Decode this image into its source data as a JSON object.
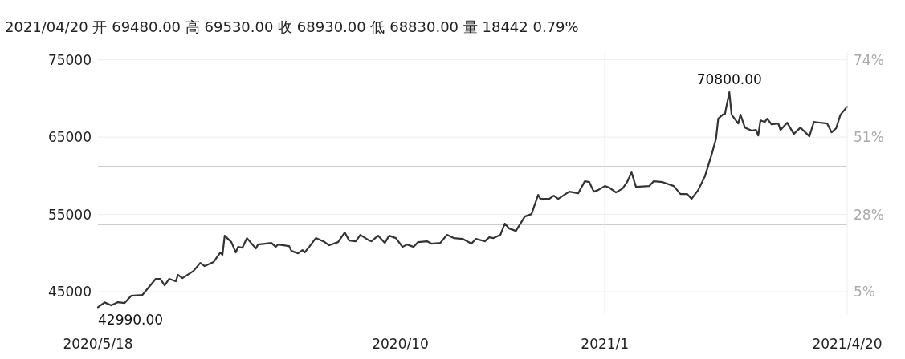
{
  "chart_data": {
    "type": "line",
    "title": "2021/04/20 开 69480.00 高 69530.00 收 68930.00 低 68830.00 量 18442 0.79%",
    "color": "#333333",
    "grid": "y",
    "marker": "none",
    "line_style": "solid",
    "x": [
      "2020-05-18",
      "2020-05-21",
      "2020-05-24",
      "2020-05-27",
      "2020-05-30",
      "2020-06-02",
      "2020-06-07",
      "2020-06-10",
      "2020-06-13",
      "2020-06-15",
      "2020-06-17",
      "2020-06-19",
      "2020-06-22",
      "2020-06-23",
      "2020-06-25",
      "2020-06-30",
      "2020-07-03",
      "2020-07-05",
      "2020-07-09",
      "2020-07-12",
      "2020-07-13",
      "2020-07-14",
      "2020-07-17",
      "2020-07-19",
      "2020-07-20",
      "2020-07-22",
      "2020-07-24",
      "2020-07-28",
      "2020-07-29",
      "2020-08-04",
      "2020-08-06",
      "2020-08-07",
      "2020-08-12",
      "2020-08-13",
      "2020-08-16",
      "2020-08-18",
      "2020-08-19",
      "2020-08-21",
      "2020-08-24",
      "2020-08-28",
      "2020-08-30",
      "2020-09-03",
      "2020-09-06",
      "2020-09-08",
      "2020-09-11",
      "2020-09-13",
      "2020-09-17",
      "2020-09-18",
      "2020-09-21",
      "2020-09-24",
      "2020-09-26",
      "2020-09-29",
      "2020-10-02",
      "2020-10-04",
      "2020-10-07",
      "2020-10-09",
      "2020-10-13",
      "2020-10-15",
      "2020-10-19",
      "2020-10-22",
      "2020-10-25",
      "2020-10-29",
      "2020-11-02",
      "2020-11-04",
      "2020-11-08",
      "2020-11-10",
      "2020-11-12",
      "2020-11-15",
      "2020-11-17",
      "2020-11-19",
      "2020-11-22",
      "2020-11-26",
      "2020-11-29",
      "2020-12-02",
      "2020-12-03",
      "2020-12-07",
      "2020-12-09",
      "2020-12-11",
      "2020-12-16",
      "2020-12-20",
      "2020-12-23",
      "2020-12-25",
      "2020-12-27",
      "2020-12-29",
      "2021-01-01",
      "2021-01-03",
      "2021-01-06",
      "2021-01-09",
      "2021-01-11",
      "2021-01-13",
      "2021-01-15",
      "2021-01-21",
      "2021-01-23",
      "2021-01-27",
      "2021-02-01",
      "2021-02-04",
      "2021-02-07",
      "2021-02-09",
      "2021-02-12",
      "2021-02-15",
      "2021-02-18",
      "2021-02-20",
      "2021-02-21",
      "2021-02-23",
      "2021-02-24",
      "2021-02-26",
      "2021-02-27",
      "2021-03-02",
      "2021-03-03",
      "2021-03-05",
      "2021-03-08",
      "2021-03-10",
      "2021-03-11",
      "2021-03-12",
      "2021-03-14",
      "2021-03-15",
      "2021-03-17",
      "2021-03-20",
      "2021-03-21",
      "2021-03-24",
      "2021-03-27",
      "2021-03-30",
      "2021-04-03",
      "2021-04-05",
      "2021-04-11",
      "2021-04-13",
      "2021-04-15",
      "2021-04-17",
      "2021-04-20"
    ],
    "values": [
      42990,
      43620,
      43240,
      43650,
      43550,
      44480,
      44590,
      45620,
      46660,
      46660,
      45830,
      46660,
      46350,
      47180,
      46760,
      47690,
      48730,
      48320,
      48830,
      50080,
      49770,
      52250,
      51420,
      50080,
      50800,
      50700,
      51940,
      50590,
      51110,
      51320,
      50800,
      51110,
      50900,
      50280,
      49970,
      50390,
      50080,
      50800,
      51940,
      51420,
      51010,
      51420,
      52670,
      51630,
      51530,
      52360,
      51630,
      51530,
      52250,
      51320,
      52250,
      51940,
      50800,
      51110,
      50800,
      51420,
      51530,
      51220,
      51320,
      52360,
      51940,
      51840,
      51220,
      51840,
      51530,
      52040,
      51940,
      52360,
      53810,
      53180,
      52870,
      54740,
      55050,
      57540,
      57020,
      57020,
      57430,
      57020,
      57950,
      57740,
      59300,
      59190,
      57950,
      58160,
      58680,
      58470,
      57850,
      58360,
      59190,
      60440,
      58570,
      58680,
      59300,
      59190,
      58680,
      57640,
      57640,
      57020,
      58160,
      59920,
      62720,
      64790,
      67380,
      67900,
      68000,
      70800,
      67900,
      66760,
      67900,
      66240,
      65830,
      65930,
      65200,
      67170,
      66960,
      67380,
      66650,
      66760,
      65930,
      66860,
      65410,
      66240,
      65100,
      66960,
      66760,
      65620,
      66130,
      67900,
      68930
    ],
    "xlim": [
      "2020-05-18",
      "2021-04-20"
    ],
    "xticks": [
      {
        "value": "2020-05-18",
        "label": "2020/5/18"
      },
      {
        "value": "2020-10-01",
        "label": "2020/10"
      },
      {
        "value": "2021-01-01",
        "label": "2021/1"
      },
      {
        "value": "2021-04-20",
        "label": "2021/4/20"
      }
    ],
    "ylim": [
      42000,
      76000
    ],
    "yticks": [
      45000,
      55000,
      65000,
      75000
    ],
    "y2lim": [
      -1.9,
      76.3
    ],
    "y2ticks": [
      {
        "value": 5,
        "label": "5%"
      },
      {
        "value": 28,
        "label": "28%"
      },
      {
        "value": 51,
        "label": "51%"
      },
      {
        "value": 74,
        "label": "74%"
      }
    ],
    "ref_lines": [
      {
        "axis": "y",
        "value": 61200,
        "color": "#cccccc"
      },
      {
        "axis": "y",
        "value": 53700,
        "color": "#cccccc"
      },
      {
        "axis": "x",
        "value": "2021-01-01",
        "color": "#eeeeee"
      }
    ],
    "annotations": [
      {
        "text": "42990.00",
        "x": "2020-05-18",
        "y": 42990
      },
      {
        "text": "70800.00",
        "x": "2021-02-26",
        "y": 70800
      }
    ]
  }
}
